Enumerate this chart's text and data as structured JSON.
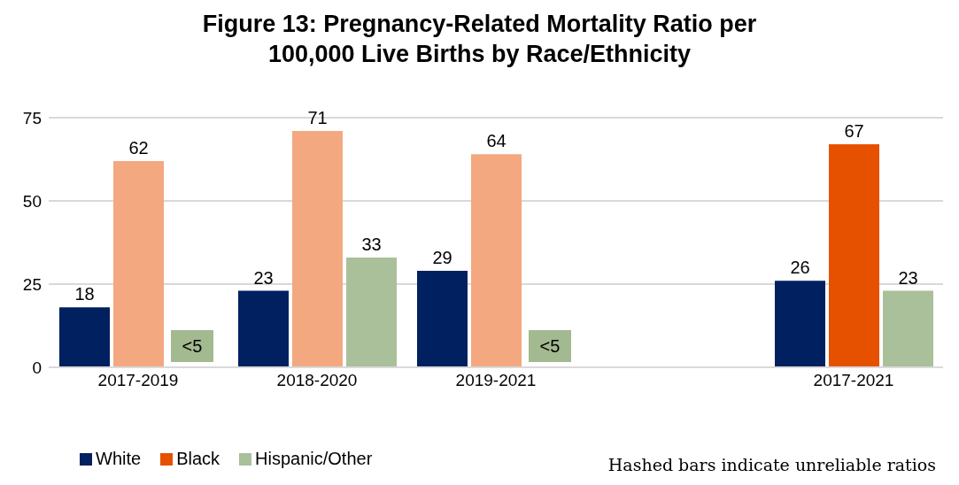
{
  "chart_data": {
    "type": "bar",
    "title": "Figure 13: Pregnancy-Related Mortality Ratio per\n100,000 Live Births by Race/Ethnicity",
    "categories": [
      "2017-2019",
      "2018-2020",
      "2019-2021",
      null,
      "2017-2021"
    ],
    "series": [
      {
        "name": "White",
        "color": "#002060",
        "values": [
          18,
          23,
          29,
          null,
          26
        ]
      },
      {
        "name": "Black",
        "color": "#e65100",
        "colors": [
          "#f3a880",
          "#f3a880",
          "#f3a880",
          null,
          "#e65100"
        ],
        "values": [
          62,
          71,
          64,
          null,
          67
        ]
      },
      {
        "name": "Hispanic/Other",
        "color": "#a9c09a",
        "values": [
          null,
          33,
          null,
          null,
          23
        ]
      }
    ],
    "ylim": [
      0,
      75
    ],
    "yticks": [
      0,
      25,
      50,
      75
    ],
    "grid": "y",
    "data_labels": true,
    "legend": "bottom left",
    "annotations": [
      "<5",
      "<5",
      "Hashed bars indicate unreliable ratios"
    ]
  }
}
